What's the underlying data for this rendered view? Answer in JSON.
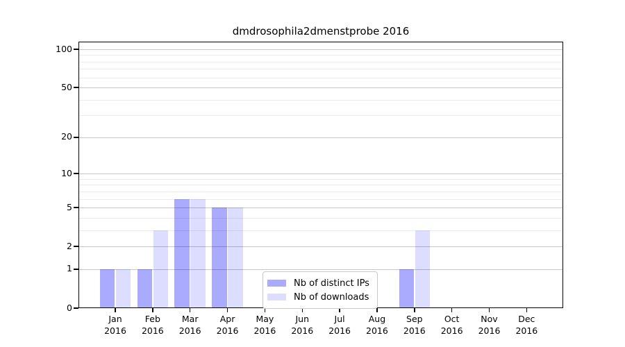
{
  "colors": {
    "distinct_ips": "#aaaaff",
    "downloads": "#ddddff",
    "major_grid": "#c8c8c8",
    "minor_grid": "#ebebeb",
    "axis": "#000000",
    "legend_border": "#c9c9c9",
    "background": "#ffffff"
  },
  "chart_data": {
    "type": "bar",
    "title": "dmdrosophila2dmenstprobe 2016",
    "year_label": "2016",
    "categories": [
      "Jan",
      "Feb",
      "Mar",
      "Apr",
      "May",
      "Jun",
      "Jul",
      "Aug",
      "Sep",
      "Oct",
      "Nov",
      "Dec"
    ],
    "series": [
      {
        "name": "Nb of distinct IPs",
        "color": "#aaaaff",
        "values": [
          1,
          1,
          6,
          5,
          0,
          0,
          0,
          0,
          1,
          0,
          0,
          0
        ]
      },
      {
        "name": "Nb of downloads",
        "color": "#ddddff",
        "values": [
          1,
          3,
          6,
          5,
          0,
          0,
          0,
          0,
          3,
          0,
          0,
          0
        ]
      }
    ],
    "yscale": "log1p",
    "ylim": [
      0,
      100
    ],
    "y_major_ticks": [
      0,
      1,
      2,
      5,
      10,
      20,
      50,
      100
    ],
    "y_minor_ticks": [
      3,
      4,
      6,
      7,
      8,
      9,
      30,
      40,
      60,
      70,
      80,
      90
    ],
    "xlabel": "",
    "ylabel": "",
    "grid": "horizontal",
    "legend_position": "inside-bottom-center"
  }
}
